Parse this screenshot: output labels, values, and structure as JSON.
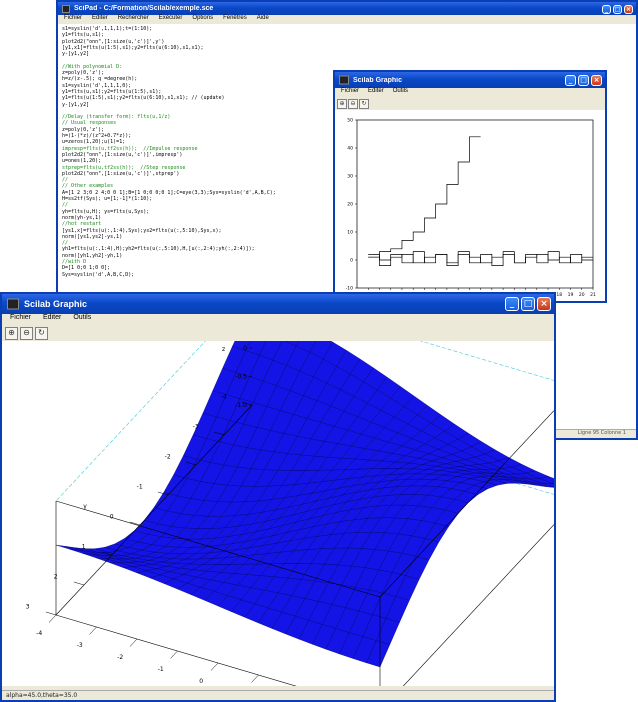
{
  "editor": {
    "title": "SciPad - C:/Formation/Scilab/exemple.sce",
    "menu": [
      "Fichier",
      "Editer",
      "Rechercher",
      "Exécuter",
      "Options",
      "Fenêtres",
      "Aide"
    ],
    "status": "Ligne 95  Colonne 1",
    "lines": [
      {
        "t": "s1=syslin('d',1,1,1);t=(1:10);",
        "c": ""
      },
      {
        "t": "y1=flts(u,s1);",
        "c": ""
      },
      {
        "t": "plot2d2(\"onn\",[1:size(u,'c')]',y')",
        "c": ""
      },
      {
        "t": "[y1,x1]=flts(u(1:5),s1);y2=flts(u(6:10),s1,x1);",
        "c": ""
      },
      {
        "t": "y-[y1,y2]",
        "c": ""
      },
      {
        "t": "",
        "c": ""
      },
      {
        "t": "//With polynomial D:",
        "c": "cmt"
      },
      {
        "t": "z=poly(0,'z');",
        "c": ""
      },
      {
        "t": "h=z/(z-.5); q =degree(h);",
        "c": ""
      },
      {
        "t": "s1=syslin('d',1,1,1,0);",
        "c": ""
      },
      {
        "t": "y1=flts(u,s1);y2=flts(u(1:5),s1);",
        "c": ""
      },
      {
        "t": "y1=flts(u(1:5),s1);y2=flts(u(6:10),s1,x1); // (update)",
        "c": ""
      },
      {
        "t": "y-[y1,y2]",
        "c": ""
      },
      {
        "t": "",
        "c": ""
      },
      {
        "t": "//Delay (transfer form): flts(u,1/z)",
        "c": "cmt"
      },
      {
        "t": "// Usual responses",
        "c": "cmt"
      },
      {
        "t": "z=poly(0,'z');",
        "c": ""
      },
      {
        "t": "h=(1-(*z)/(z^2+0.7*z));",
        "c": ""
      },
      {
        "t": "u=zeros(1,20);u(1)=1;",
        "c": ""
      },
      {
        "t": "impresp=flts(u,tf2ss(h));  //Impulse response",
        "c": "cmt"
      },
      {
        "t": "plot2d2(\"onn\",[1:size(u,'c')]',impresp')",
        "c": ""
      },
      {
        "t": "u=ones(1,20);",
        "c": ""
      },
      {
        "t": "stprep=flts(u,tf2ss(h));  //Step response",
        "c": "cmt"
      },
      {
        "t": "plot2d2(\"onn\",[1:size(u,'c')]',stprep')",
        "c": ""
      },
      {
        "t": "//",
        "c": "cmt"
      },
      {
        "t": "// Other examples",
        "c": "cmt"
      },
      {
        "t": "A=[1 2 3;0 2 4;0 0 1];B=[1 0;0 0;0 1];C=eye(3,3);Sys=syslin('d',A,B,C);",
        "c": ""
      },
      {
        "t": "H=ss2tf(Sys); u=[1;-1]*(1:10);",
        "c": ""
      },
      {
        "t": "//",
        "c": "cmt"
      },
      {
        "t": "yh=flts(u,H); ys=flts(u,Sys);",
        "c": ""
      },
      {
        "t": "norm(yh-ys,1)",
        "c": ""
      },
      {
        "t": "//hot restart",
        "c": "cmt"
      },
      {
        "t": "[ys1,x]=flts(u(:,1:4),Sys);ys2=flts(u(:,5:10),Sys,x);",
        "c": ""
      },
      {
        "t": "norm([ys1,ys2]-ys,1)",
        "c": ""
      },
      {
        "t": "//",
        "c": "cmt"
      },
      {
        "t": "yh1=flts(u(:,1:4),H);yh2=flts(u(:,5:10),H,[u(:,2:4);yh(:,2:4)]);",
        "c": ""
      },
      {
        "t": "norm([yh1,yh2]-yh,1)",
        "c": ""
      },
      {
        "t": "//with D",
        "c": "cmt"
      },
      {
        "t": "D=[1 0;0 1;0 0];",
        "c": ""
      },
      {
        "t": "Sys=syslin('d',A,B,C,D);",
        "c": ""
      }
    ]
  },
  "graphic1": {
    "title": "Scilab Graphic",
    "menu": [
      "Fichier",
      "Editer",
      "Outils"
    ],
    "toolbar": [
      "zoom-in",
      "zoom-out",
      "rotate"
    ],
    "chart_data": {
      "type": "line",
      "xlim": [
        0,
        21
      ],
      "ylim": [
        -10,
        50
      ],
      "xticks": [
        "1",
        "2",
        "3",
        "4",
        "5",
        "6",
        "7",
        "8",
        "9",
        "10",
        "11",
        "12",
        "13",
        "14",
        "15",
        "16",
        "17",
        "18",
        "19",
        "20",
        "21"
      ],
      "yticks": [
        "-10",
        "0",
        "10",
        "20",
        "30",
        "40",
        "50"
      ],
      "series": [
        {
          "x": [
            1,
            2,
            3,
            4,
            5,
            6,
            7,
            8,
            9,
            10
          ],
          "y": [
            1,
            3,
            4,
            7,
            10,
            15,
            20,
            27,
            35,
            44
          ]
        },
        {
          "x": [
            1,
            2,
            3,
            4,
            5,
            6,
            7,
            8,
            9,
            10,
            11,
            12,
            13,
            14,
            15,
            16,
            17,
            18,
            19,
            20
          ],
          "y": [
            1,
            -2,
            2,
            -1,
            3,
            -1,
            2,
            -2,
            3,
            -1,
            2,
            -2,
            3,
            -1,
            2,
            -1,
            3,
            -1,
            2,
            0
          ]
        },
        {
          "x": [
            1,
            2,
            3,
            4,
            5,
            6,
            7,
            8,
            9,
            10,
            11,
            12,
            13,
            14,
            15,
            16,
            17,
            18,
            19,
            20
          ],
          "y": [
            2,
            0,
            1,
            2,
            -1,
            1,
            2,
            -1,
            2,
            1,
            -1,
            1,
            2,
            -1,
            1,
            2,
            0,
            1,
            -1,
            1
          ]
        }
      ]
    }
  },
  "graphic2": {
    "title": "Scilab Graphic",
    "menu": [
      "Fichier",
      "Editer",
      "Outils"
    ],
    "toolbar": [
      "zoom-in",
      "zoom-out",
      "rotate"
    ],
    "status": "alpha=45.0,theta=35.0",
    "chart_data": {
      "type": "surface",
      "x_range": [
        -4,
        4
      ],
      "y_range": [
        -4,
        3
      ],
      "z_range": [
        -1.0,
        1.0
      ],
      "z_ticks": [
        "1.0",
        "0.5",
        "0",
        "-0.5",
        "-1.0"
      ],
      "z_label": "z",
      "x_label": "x",
      "y_label": "y",
      "x_ticks": [
        "-4",
        "-3",
        "-2",
        "-1",
        "0",
        "1",
        "2",
        "3",
        "4"
      ],
      "y_ticks": [
        "-4",
        "-3",
        "-2",
        "-1",
        "0",
        "1",
        "2",
        "3"
      ],
      "fill_color": "#1414e6",
      "mesh_color": "#000066"
    }
  }
}
